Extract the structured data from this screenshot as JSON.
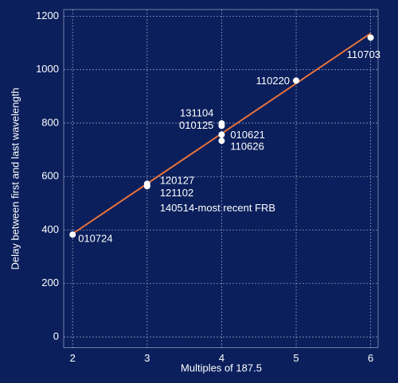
{
  "chart_data": {
    "type": "scatter",
    "x_label": "Multiples of 187.5",
    "y_label": "Delay between first and last wavelength",
    "xlim": [
      1.88,
      6.1
    ],
    "ylim": [
      -40,
      1225
    ],
    "xticks": [
      2,
      3,
      4,
      5,
      6
    ],
    "yticks": [
      0,
      200,
      400,
      600,
      800,
      1000,
      1200
    ],
    "grid": true,
    "point_color": "#ffffff",
    "series": [
      {
        "color": "#ffffff",
        "x": [
          2,
          3,
          3,
          3,
          4,
          4,
          4,
          4,
          5,
          6
        ],
        "values": [
          383,
          573,
          566,
          564,
          799,
          790,
          757,
          734,
          959,
          1120
        ],
        "labels": [
          "010724",
          "120127",
          "121102",
          "140514-most recent FRB",
          "131104",
          "010125",
          "010621",
          "110626",
          "110220",
          "110703"
        ]
      }
    ],
    "trend": {
      "color": "#e8733a",
      "x": [
        2,
        6
      ],
      "values": [
        386,
        1136
      ]
    }
  }
}
